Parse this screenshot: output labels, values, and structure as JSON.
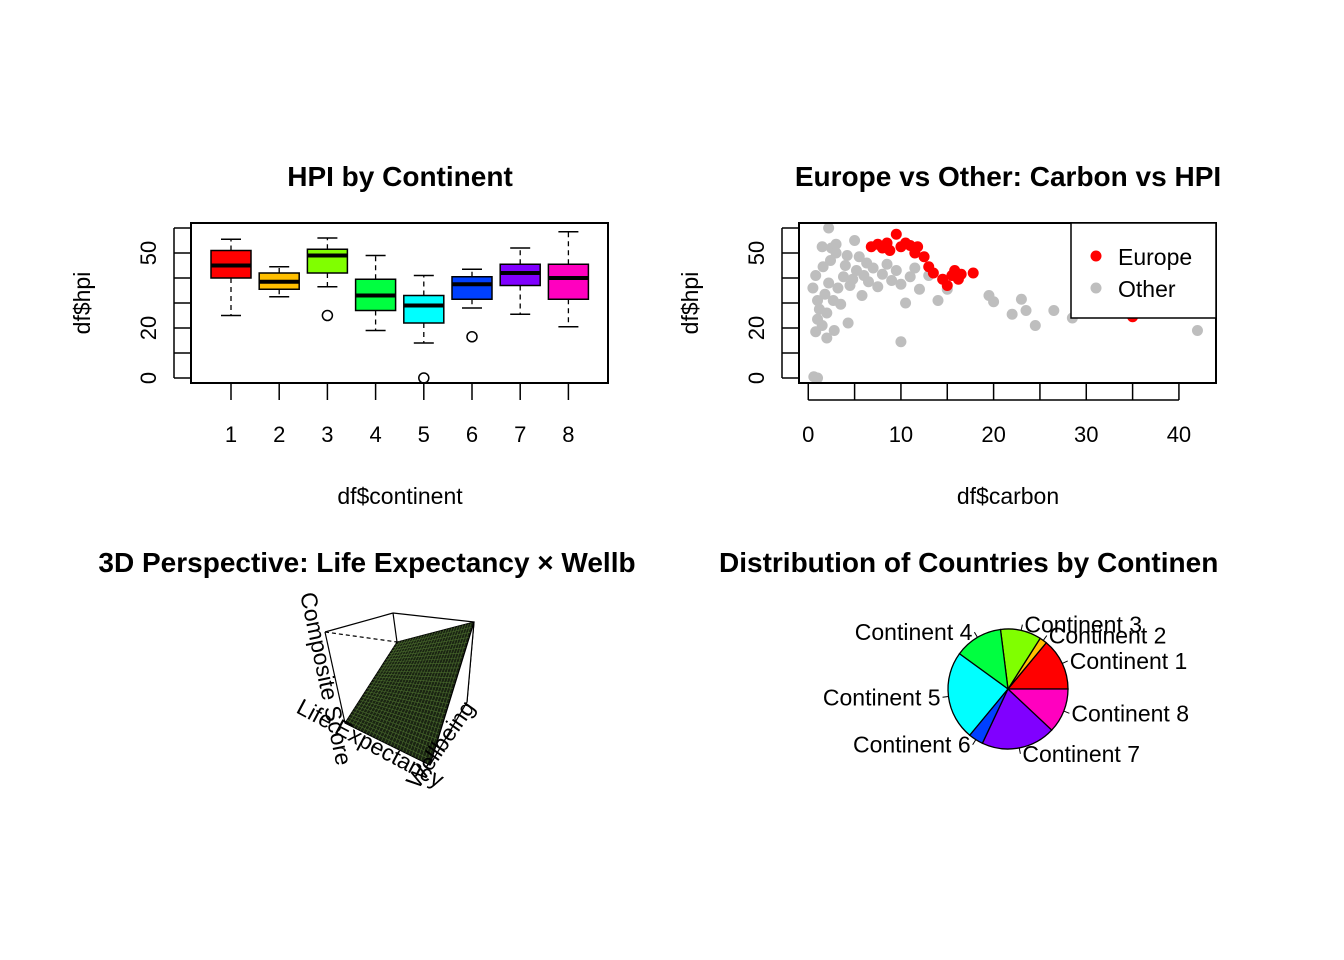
{
  "chart_data": [
    {
      "type": "box",
      "title": "HPI by Continent",
      "xlabel": "df$continent",
      "ylabel": "df$hpi",
      "ylim": [
        0,
        60
      ],
      "y_ticks": [
        "0",
        "20",
        "50"
      ],
      "categories": [
        "1",
        "2",
        "3",
        "4",
        "5",
        "6",
        "7",
        "8"
      ],
      "colors": [
        "#ff0000",
        "#ffbf00",
        "#80ff00",
        "#00ff40",
        "#00ffff",
        "#0040ff",
        "#8000ff",
        "#ff00bf"
      ],
      "boxes": [
        {
          "lower_whisker": 25.0,
          "q1": 40.0,
          "median": 45.0,
          "q3": 51.0,
          "upper_whisker": 55.5,
          "outliers": []
        },
        {
          "lower_whisker": 32.5,
          "q1": 35.5,
          "median": 38.5,
          "q3": 42.0,
          "upper_whisker": 44.5,
          "outliers": []
        },
        {
          "lower_whisker": 36.5,
          "q1": 42.0,
          "median": 49.0,
          "q3": 51.5,
          "upper_whisker": 56.0,
          "outliers": [
            25.0
          ]
        },
        {
          "lower_whisker": 19.0,
          "q1": 27.0,
          "median": 33.0,
          "q3": 39.5,
          "upper_whisker": 49.0,
          "outliers": []
        },
        {
          "lower_whisker": 14.0,
          "q1": 22.0,
          "median": 29.0,
          "q3": 33.0,
          "upper_whisker": 41.0,
          "outliers": [
            0.0
          ]
        },
        {
          "lower_whisker": 28.0,
          "q1": 31.5,
          "median": 37.5,
          "q3": 40.5,
          "upper_whisker": 43.5,
          "outliers": [
            16.5
          ]
        },
        {
          "lower_whisker": 25.5,
          "q1": 37.0,
          "median": 42.0,
          "q3": 45.5,
          "upper_whisker": 52.0,
          "outliers": []
        },
        {
          "lower_whisker": 20.5,
          "q1": 31.5,
          "median": 40.0,
          "q3": 45.5,
          "upper_whisker": 58.5,
          "outliers": []
        }
      ]
    },
    {
      "type": "scatter",
      "title": "Europe vs Other: Carbon vs HPI",
      "xlabel": "df$carbon",
      "ylabel": "df$hpi",
      "xlim": [
        -1,
        44
      ],
      "ylim": [
        -2,
        62
      ],
      "x_ticks": [
        "0",
        "10",
        "20",
        "30",
        "40"
      ],
      "y_ticks": [
        "0",
        "20",
        "50"
      ],
      "legend_position": "top-right",
      "series": [
        {
          "name": "Europe",
          "color": "#ff0000",
          "points": [
            [
              6.8,
              52.5
            ],
            [
              7.5,
              53.5
            ],
            [
              8.0,
              52.0
            ],
            [
              8.5,
              54.0
            ],
            [
              8.8,
              51.0
            ],
            [
              9.5,
              57.5
            ],
            [
              10.0,
              52.5
            ],
            [
              10.5,
              54.0
            ],
            [
              11.0,
              53.0
            ],
            [
              11.5,
              50.0
            ],
            [
              11.8,
              52.5
            ],
            [
              12.5,
              48.5
            ],
            [
              13.0,
              44.5
            ],
            [
              13.5,
              42.0
            ],
            [
              14.5,
              39.5
            ],
            [
              15.0,
              37.0
            ],
            [
              15.5,
              41.0
            ],
            [
              15.8,
              43.0
            ],
            [
              16.2,
              39.5
            ],
            [
              16.5,
              41.5
            ],
            [
              17.8,
              42.0
            ],
            [
              35.0,
              24.5
            ]
          ]
        },
        {
          "name": "Other",
          "color": "#bebebe",
          "points": [
            [
              0.5,
              36.0
            ],
            [
              0.8,
              41.0
            ],
            [
              1.0,
              31.0
            ],
            [
              1.2,
              27.5
            ],
            [
              1.5,
              21.0
            ],
            [
              1.6,
              44.5
            ],
            [
              1.8,
              33.5
            ],
            [
              2.0,
              26.0
            ],
            [
              2.2,
              38.0
            ],
            [
              2.4,
              47.0
            ],
            [
              2.5,
              52.0
            ],
            [
              2.7,
              31.0
            ],
            [
              3.0,
              50.0
            ],
            [
              3.2,
              36.0
            ],
            [
              3.5,
              29.5
            ],
            [
              3.8,
              40.5
            ],
            [
              4.0,
              45.0
            ],
            [
              4.3,
              22.0
            ],
            [
              4.5,
              37.0
            ],
            [
              4.8,
              39.5
            ],
            [
              5.0,
              55.0
            ],
            [
              5.2,
              43.0
            ],
            [
              5.5,
              48.5
            ],
            [
              5.8,
              33.0
            ],
            [
              6.0,
              41.0
            ],
            [
              6.3,
              46.0
            ],
            [
              6.5,
              38.5
            ],
            [
              7.0,
              44.0
            ],
            [
              7.5,
              36.5
            ],
            [
              8.0,
              41.5
            ],
            [
              8.5,
              45.5
            ],
            [
              9.0,
              39.0
            ],
            [
              9.5,
              43.0
            ],
            [
              10.0,
              37.5
            ],
            [
              10.5,
              30.0
            ],
            [
              11.0,
              40.5
            ],
            [
              11.5,
              44.0
            ],
            [
              12.0,
              35.5
            ],
            [
              13.0,
              41.0
            ],
            [
              14.0,
              31.0
            ],
            [
              15.0,
              35.5
            ],
            [
              19.5,
              33.0
            ],
            [
              20.0,
              30.5
            ],
            [
              22.0,
              25.5
            ],
            [
              23.0,
              31.5
            ],
            [
              23.5,
              27.0
            ],
            [
              24.5,
              21.0
            ],
            [
              26.5,
              27.0
            ],
            [
              28.5,
              24.0
            ],
            [
              42.0,
              19.0
            ],
            [
              1.0,
              23.5
            ],
            [
              2.0,
              16.0
            ],
            [
              2.8,
              19.0
            ],
            [
              0.6,
              0.5
            ],
            [
              1.0,
              0.0
            ],
            [
              10.0,
              14.5
            ],
            [
              0.8,
              18.5
            ],
            [
              2.2,
              60.0
            ],
            [
              1.5,
              52.5
            ],
            [
              3.0,
              53.5
            ],
            [
              4.2,
              49.0
            ]
          ]
        }
      ]
    },
    {
      "type": "surface",
      "title": "3D Perspective: Life Expectancy × Wellb",
      "axis_labels": [
        "Life Expectancy",
        "Wellbeing",
        "Composite Score"
      ]
    },
    {
      "type": "pie",
      "title": "Distribution of Countries by Continen",
      "slices": [
        {
          "label": "Continent 1",
          "value": 14,
          "color": "#ff0000"
        },
        {
          "label": "Continent 2",
          "value": 2,
          "color": "#ffbf00"
        },
        {
          "label": "Continent 3",
          "value": 11,
          "color": "#80ff00"
        },
        {
          "label": "Continent 4",
          "value": 13,
          "color": "#00ff40"
        },
        {
          "label": "Continent 5",
          "value": 24,
          "color": "#00ffff"
        },
        {
          "label": "Continent 6",
          "value": 4,
          "color": "#0040ff"
        },
        {
          "label": "Continent 7",
          "value": 20,
          "color": "#8000ff"
        },
        {
          "label": "Continent 8",
          "value": 12,
          "color": "#ff00bf"
        }
      ]
    }
  ]
}
